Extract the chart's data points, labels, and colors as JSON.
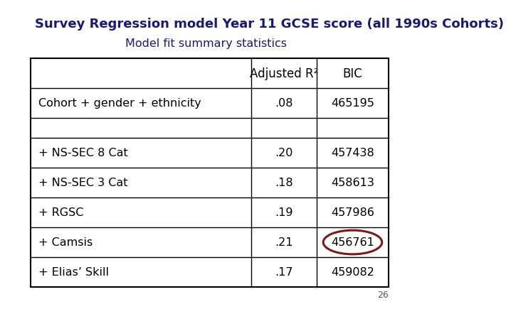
{
  "title": "Survey Regression model Year 11 GCSE score (all 1990s Cohorts)",
  "subtitle": "Model fit summary statistics",
  "title_color": "#1a1a6e",
  "subtitle_color": "#1a1a6e",
  "col_headers": [
    "",
    "Adjusted R²",
    "BIC"
  ],
  "rows": [
    [
      "Cohort + gender + ethnicity",
      ".08",
      "465195"
    ],
    [
      "",
      "",
      ""
    ],
    [
      "+ NS-SEC 8 Cat",
      ".20",
      "457438"
    ],
    [
      "+ NS-SEC 3 Cat",
      ".18",
      "458613"
    ],
    [
      "+ RGSC",
      ".19",
      "457986"
    ],
    [
      "+ Camsis",
      ".21",
      "456761"
    ],
    [
      "+ Elias’ Skill",
      ".17",
      "459082"
    ]
  ],
  "circled_row_label": "+ Camsis",
  "circled_col": 2,
  "page_number": "26",
  "bg_color": "#ffffff"
}
